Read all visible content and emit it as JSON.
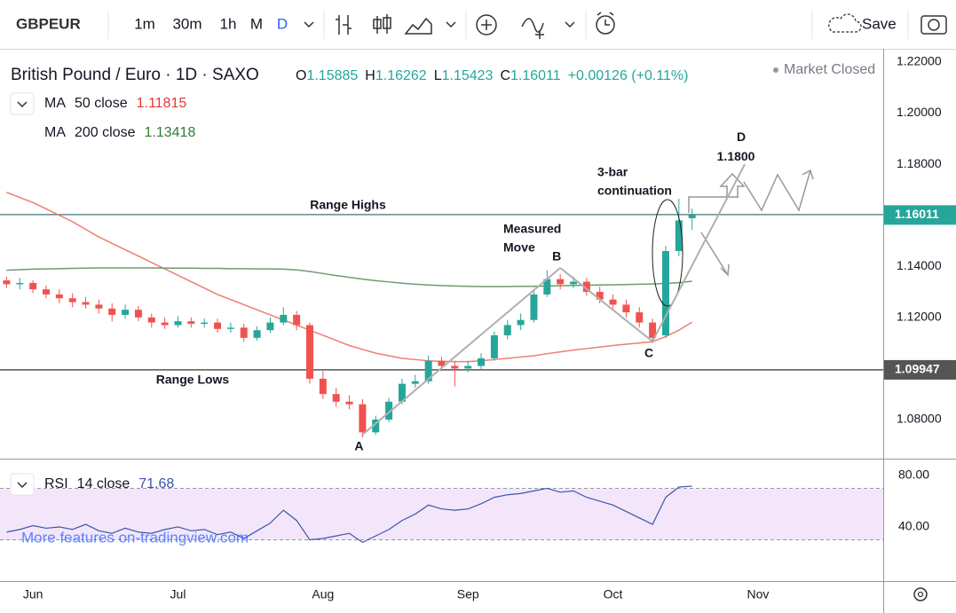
{
  "toolbar": {
    "symbol": "GBPEUR",
    "intervals": [
      "1m",
      "30m",
      "1h",
      "M",
      "D"
    ],
    "save": "Save"
  },
  "watermark": "More features on-tradingview.com",
  "chart_data": [
    {
      "type": "candlestick",
      "title": "British Pound / Euro · 1D · SAXO",
      "status": "Market Closed",
      "ohlc_letters": [
        "O",
        "H",
        "L",
        "C"
      ],
      "change_label": "+0.00126 (+0.11%)",
      "up_color": "#26a69a",
      "down_color": "#ef5350",
      "categories": [
        null,
        null,
        "Jun",
        null,
        null,
        null,
        null,
        null,
        null,
        null,
        null,
        null,
        null,
        "Jul",
        null,
        null,
        null,
        null,
        null,
        null,
        null,
        null,
        null,
        null,
        "Aug",
        null,
        null,
        null,
        null,
        null,
        null,
        null,
        null,
        null,
        null,
        "Sep",
        null,
        null,
        null,
        null,
        null,
        null,
        null,
        null,
        null,
        null,
        "Oct",
        null,
        null,
        null,
        null,
        null,
        null,
        null,
        null,
        null,
        null,
        "Nov",
        null,
        null,
        null,
        null,
        null,
        null,
        null,
        null,
        null
      ],
      "open": [
        1.1345,
        1.133,
        1.1335,
        1.131,
        1.129,
        1.1275,
        1.126,
        1.125,
        1.1235,
        1.121,
        1.123,
        1.12,
        1.118,
        1.117,
        1.1185,
        1.1175,
        1.118,
        1.1155,
        1.116,
        1.112,
        1.115,
        1.118,
        1.121,
        1.117,
        1.096,
        1.09,
        1.087,
        1.086,
        1.075,
        1.08,
        1.087,
        1.094,
        1.095,
        1.103,
        1.101,
        1.1,
        1.101,
        1.104,
        1.113,
        1.117,
        1.119,
        1.129,
        1.135,
        1.133,
        1.134,
        1.13,
        1.127,
        1.125,
        1.122,
        1.118,
        1.113,
        1.146,
        1.15885,
        null,
        null,
        null,
        null,
        null,
        null,
        null,
        null,
        null,
        null,
        null,
        null,
        null,
        null
      ],
      "high": [
        1.136,
        1.1355,
        1.1345,
        1.1325,
        1.131,
        1.1295,
        1.128,
        1.127,
        1.1255,
        1.125,
        1.1245,
        1.1215,
        1.12,
        1.1205,
        1.12,
        1.1195,
        1.1195,
        1.118,
        1.1175,
        1.1165,
        1.12,
        1.124,
        1.1225,
        1.118,
        1.099,
        1.0925,
        1.0895,
        1.088,
        1.0815,
        1.0885,
        1.096,
        1.0975,
        1.105,
        1.1045,
        1.103,
        1.103,
        1.106,
        1.1145,
        1.119,
        1.1215,
        1.1305,
        1.1385,
        1.137,
        1.136,
        1.1355,
        1.132,
        1.129,
        1.127,
        1.124,
        1.1195,
        1.148,
        1.1665,
        1.16262,
        null,
        null,
        null,
        null,
        null,
        null,
        null,
        null,
        null,
        null,
        null,
        null,
        null,
        null
      ],
      "low": [
        1.1315,
        1.131,
        1.1295,
        1.1275,
        1.1255,
        1.124,
        1.1235,
        1.1215,
        1.1185,
        1.1195,
        1.1185,
        1.116,
        1.1155,
        1.116,
        1.116,
        1.116,
        1.114,
        1.114,
        1.1105,
        1.111,
        1.114,
        1.117,
        1.115,
        1.094,
        1.088,
        1.085,
        1.084,
        1.073,
        1.074,
        1.079,
        1.086,
        1.0925,
        1.094,
        1.099,
        1.093,
        1.0985,
        1.0995,
        1.103,
        1.1115,
        1.115,
        1.118,
        1.128,
        1.131,
        1.1315,
        1.1285,
        1.1255,
        1.1235,
        1.12,
        1.116,
        1.11,
        1.112,
        1.144,
        1.15423,
        null,
        null,
        null,
        null,
        null,
        null,
        null,
        null,
        null,
        null,
        null,
        null,
        null,
        null
      ],
      "close": [
        1.133,
        1.1335,
        1.131,
        1.129,
        1.1275,
        1.126,
        1.125,
        1.1235,
        1.121,
        1.123,
        1.12,
        1.118,
        1.117,
        1.1185,
        1.1175,
        1.118,
        1.1155,
        1.116,
        1.112,
        1.115,
        1.118,
        1.121,
        1.117,
        1.096,
        1.09,
        1.087,
        1.086,
        1.075,
        1.08,
        1.087,
        1.094,
        1.095,
        1.103,
        1.101,
        1.1,
        1.101,
        1.104,
        1.113,
        1.117,
        1.119,
        1.129,
        1.135,
        1.133,
        1.134,
        1.13,
        1.127,
        1.125,
        1.122,
        1.118,
        1.112,
        1.146,
        1.158,
        1.16011,
        null,
        null,
        null,
        null,
        null,
        null,
        null,
        null,
        null,
        null,
        null,
        null,
        null,
        null
      ],
      "series": [
        {
          "name": "MA",
          "params": "50 close",
          "color": "#ef7d70",
          "values": [
            1.169,
            1.167,
            1.165,
            1.1625,
            1.16,
            1.1575,
            1.1545,
            1.1515,
            1.149,
            1.1465,
            1.144,
            1.1415,
            1.139,
            1.1365,
            1.134,
            1.1315,
            1.129,
            1.127,
            1.125,
            1.123,
            1.121,
            1.119,
            1.117,
            1.115,
            1.113,
            1.111,
            1.109,
            1.1075,
            1.106,
            1.105,
            1.104,
            1.1035,
            1.103,
            1.1028,
            1.1027,
            1.1027,
            1.103,
            1.1035,
            1.104,
            1.1045,
            1.105,
            1.1058,
            1.1065,
            1.1072,
            1.1078,
            1.1084,
            1.109,
            1.1095,
            1.11,
            1.1105,
            1.1125,
            1.115,
            1.11815,
            null,
            null,
            null,
            null,
            null,
            null,
            null,
            null,
            null,
            null,
            null,
            null,
            null,
            null
          ]
        },
        {
          "name": "MA",
          "params": "200 close",
          "color": "#6f9a70",
          "values": [
            1.1385,
            1.1387,
            1.1389,
            1.139,
            1.1391,
            1.1392,
            1.1393,
            1.1394,
            1.1394,
            1.1394,
            1.1394,
            1.1394,
            1.1393,
            1.1393,
            1.1393,
            1.1392,
            1.1392,
            1.1391,
            1.1391,
            1.139,
            1.139,
            1.1389,
            1.1386,
            1.138,
            1.1372,
            1.1364,
            1.1357,
            1.135,
            1.1344,
            1.1339,
            1.1334,
            1.133,
            1.1327,
            1.1325,
            1.1323,
            1.1322,
            1.1321,
            1.1321,
            1.1321,
            1.1322,
            1.1322,
            1.1323,
            1.1324,
            1.1325,
            1.1326,
            1.1327,
            1.1328,
            1.1329,
            1.133,
            1.1331,
            1.1333,
            1.1336,
            1.13418,
            null,
            null,
            null,
            null,
            null,
            null,
            null,
            null,
            null,
            null,
            null,
            null,
            null,
            null
          ]
        }
      ],
      "hlines": [
        {
          "value": 1.16027,
          "label": "Range Highs",
          "color": "#5f8c8c"
        },
        {
          "value": 1.09947,
          "label": "Range Lows",
          "color": "#555555"
        }
      ],
      "annotations": {
        "measured_move": [
          "Measured",
          "Move"
        ],
        "continuation": [
          "3-bar",
          "continuation"
        ]
      },
      "pattern": [
        {
          "label": "A",
          "x": 27,
          "y": 1.0741
        },
        {
          "label": "B",
          "x": 42,
          "y": 1.1394
        },
        {
          "label": "C",
          "x": 49,
          "y": 1.1106
        },
        {
          "label": "D",
          "x": 56,
          "y": {
            "value": 1.18,
            "label": "1.1800"
          }
        }
      ],
      "ylim": [
        1.0647,
        1.2252
      ],
      "yticks": [
        {
          "value": 1.08,
          "label": "1.08000"
        },
        {
          "value": 1.1,
          "label": "1.10000"
        },
        {
          "value": 1.12,
          "label": "1.12000"
        },
        {
          "value": 1.14,
          "label": "1.14000"
        },
        {
          "value": 1.16,
          "label": "1.16000"
        },
        {
          "value": 1.18,
          "label": "1.18000"
        },
        {
          "value": 1.2,
          "label": "1.20000"
        },
        {
          "value": 1.22,
          "label": "1.22000"
        }
      ],
      "grid": false
    },
    {
      "type": "line",
      "name": "RSI",
      "params": "14 close",
      "color": "#3a56a8",
      "values": [
        36,
        38,
        41,
        39,
        40,
        38,
        42,
        37,
        35,
        39,
        36,
        35,
        38,
        40,
        37,
        38,
        34,
        36,
        31,
        37,
        43,
        53,
        45,
        30,
        31,
        33,
        35,
        28,
        33,
        38,
        45,
        50,
        57,
        54,
        53,
        54,
        58,
        63,
        65,
        66,
        68,
        70,
        67,
        68,
        63,
        60,
        57,
        52,
        47,
        42,
        63,
        71,
        71.68,
        null,
        null,
        null,
        null,
        null,
        null,
        null,
        null,
        null,
        null,
        null,
        null,
        null,
        null
      ],
      "band": {
        "lower": 30,
        "upper": 70,
        "color": "#f3e6fb"
      },
      "ylim": [
        -2.1,
        92.4
      ],
      "yticks": [
        {
          "value": 40,
          "label": "40.00"
        },
        {
          "value": 80,
          "label": "80.00"
        }
      ],
      "grid": false
    }
  ]
}
